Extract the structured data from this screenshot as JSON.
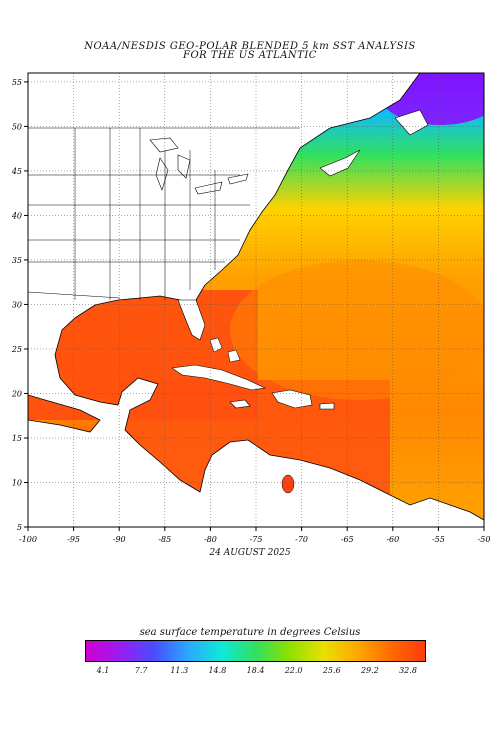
{
  "title": {
    "line1": "NOAA/NESDIS GEO-POLAR BLENDED 5 km SST ANALYSIS",
    "line2": "FOR THE US ATLANTIC"
  },
  "date": "24 AUGUST 2025",
  "map": {
    "lon_range": [
      -100,
      -50
    ],
    "lat_range": [
      5,
      56
    ],
    "lon_ticks": [
      "-100",
      "-95",
      "-90",
      "-85",
      "-80",
      "-75",
      "-70",
      "-65",
      "-60",
      "-55",
      "-50"
    ],
    "lat_ticks": [
      "55",
      "50",
      "45",
      "40",
      "35",
      "30",
      "25",
      "20",
      "15",
      "10",
      "5"
    ],
    "grid": "dotted",
    "land_color": "#ffffff"
  },
  "colorbar": {
    "title": "sea surface temperature in degrees Celsius",
    "ticks": [
      "4.1",
      "7.7",
      "11.3",
      "14.8",
      "18.4",
      "22.0",
      "25.6",
      "29.2",
      "32.8"
    ],
    "colors": [
      "#d000d0",
      "#9a1cf0",
      "#4a4cff",
      "#2aa8ff",
      "#10e8d8",
      "#30e060",
      "#8ee000",
      "#e8e000",
      "#ffa800",
      "#ff6a00",
      "#ff3a10"
    ]
  }
}
